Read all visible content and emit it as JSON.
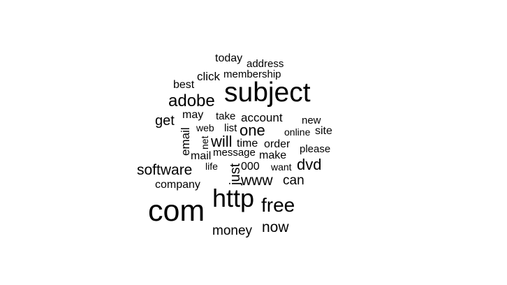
{
  "words": [
    "subject",
    "com",
    "http",
    "free",
    "adobe",
    "software",
    "now",
    "money",
    "dvd",
    "one",
    "will",
    "www",
    "can",
    "get",
    "just",
    "today",
    "address",
    "click",
    "membership",
    "best",
    "may",
    "take",
    "account",
    "new",
    "web",
    "list",
    "online",
    "site",
    "email",
    "net",
    "time",
    "order",
    "message",
    "make",
    "please",
    "mail",
    "life",
    "000",
    "want",
    "company"
  ],
  "colors": {
    "background": "#ffffff",
    "text": "#000000"
  }
}
